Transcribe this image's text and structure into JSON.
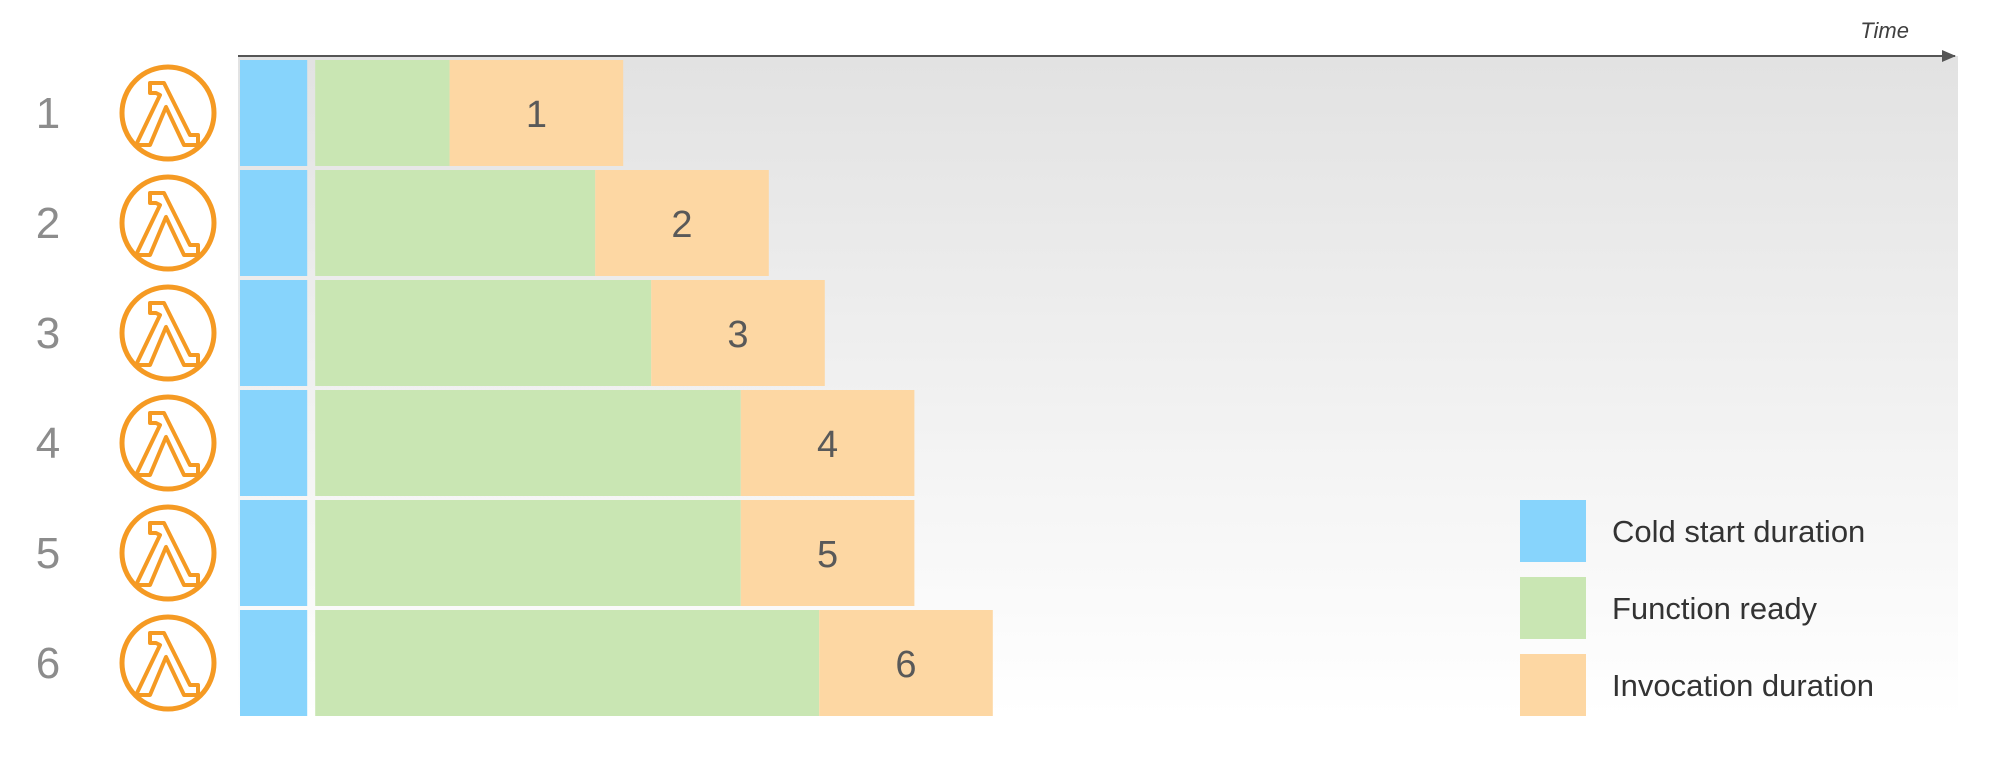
{
  "axis": {
    "label": "Time"
  },
  "rows": [
    {
      "row_label": "1",
      "bar_label": "1",
      "cold_start": 0.6,
      "ready": 1.2,
      "invocation": 1.55
    },
    {
      "row_label": "2",
      "bar_label": "2",
      "cold_start": 0.6,
      "ready": 2.5,
      "invocation": 1.55
    },
    {
      "row_label": "3",
      "bar_label": "3",
      "cold_start": 0.6,
      "ready": 3.0,
      "invocation": 1.55
    },
    {
      "row_label": "4",
      "bar_label": "4",
      "cold_start": 0.6,
      "ready": 3.8,
      "invocation": 1.55
    },
    {
      "row_label": "5",
      "bar_label": "5",
      "cold_start": 0.6,
      "ready": 3.8,
      "invocation": 1.55
    },
    {
      "row_label": "6",
      "bar_label": "6",
      "cold_start": 0.6,
      "ready": 4.5,
      "invocation": 1.55
    }
  ],
  "icon": {
    "name": "aws-lambda-icon",
    "glyph": "λ",
    "color": "#F59A23"
  },
  "legend": {
    "position": "bottom-right",
    "items": [
      {
        "key": "cold_start",
        "label": "Cold start duration",
        "color": "#87D4FC"
      },
      {
        "key": "ready",
        "label": "Function ready",
        "color": "#C9E6B3"
      },
      {
        "key": "invocation",
        "label": "Invocation duration",
        "color": "#FDD7A3"
      }
    ]
  },
  "colors": {
    "cold_start": "#87D4FC",
    "ready": "#C9E6B3",
    "invocation": "#FDD7A3",
    "row_label": "#8C8C8C",
    "bar_label": "#595959",
    "axis": "#555555"
  }
}
